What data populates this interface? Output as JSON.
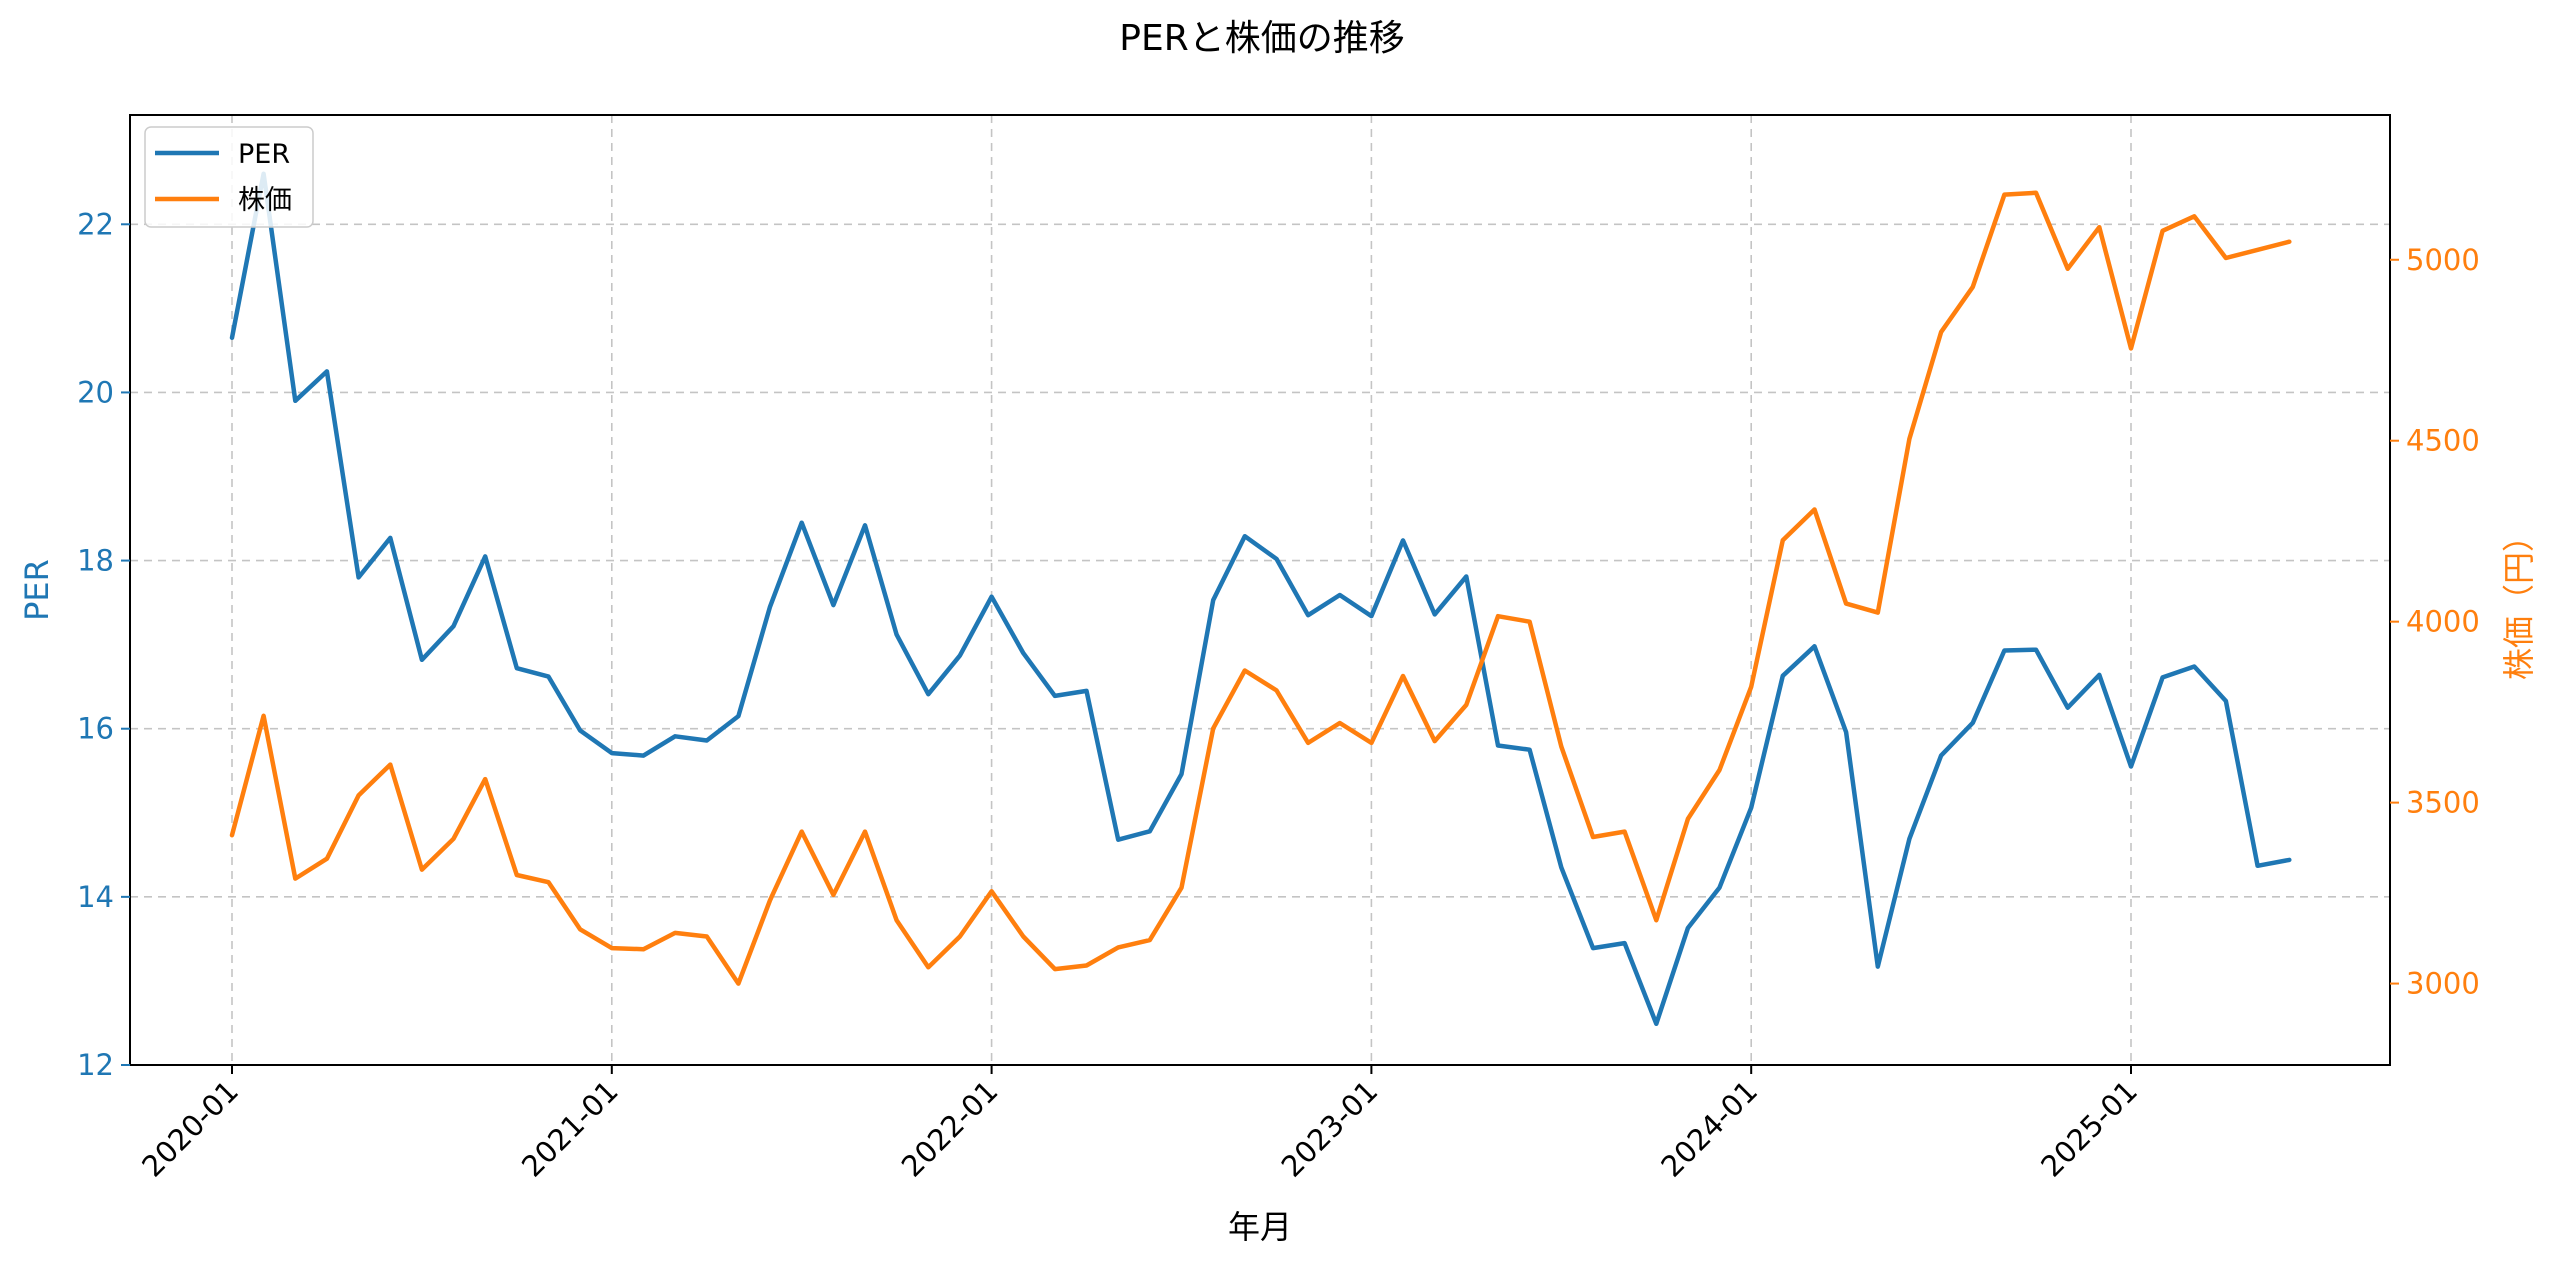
{
  "chart_data": {
    "type": "line",
    "title": "PERと株価の推移",
    "xlabel": "年月",
    "x_tick_labels": [
      "2020-01",
      "2021-01",
      "2022-01",
      "2023-01",
      "2024-01",
      "2025-01"
    ],
    "x": [
      "2020-01",
      "2020-02",
      "2020-03",
      "2020-04",
      "2020-05",
      "2020-06",
      "2020-07",
      "2020-08",
      "2020-09",
      "2020-10",
      "2020-11",
      "2020-12",
      "2021-01",
      "2021-02",
      "2021-03",
      "2021-04",
      "2021-05",
      "2021-06",
      "2021-07",
      "2021-08",
      "2021-09",
      "2021-10",
      "2021-11",
      "2021-12",
      "2022-01",
      "2022-02",
      "2022-03",
      "2022-04",
      "2022-05",
      "2022-06",
      "2022-07",
      "2022-08",
      "2022-09",
      "2022-10",
      "2022-11",
      "2022-12",
      "2023-01",
      "2023-02",
      "2023-03",
      "2023-04",
      "2023-05",
      "2023-06",
      "2023-07",
      "2023-08",
      "2023-09",
      "2023-10",
      "2023-11",
      "2023-12",
      "2024-01",
      "2024-02",
      "2024-03",
      "2024-04",
      "2024-05",
      "2024-06",
      "2024-07",
      "2024-08",
      "2024-09",
      "2024-10",
      "2024-11",
      "2024-12",
      "2025-01",
      "2025-02",
      "2025-03",
      "2025-04",
      "2025-05",
      "2025-06"
    ],
    "series": [
      {
        "name": "PER",
        "axis": "left",
        "color": "#1f77b4",
        "values": [
          20.65,
          22.6,
          19.9,
          20.25,
          17.8,
          18.27,
          16.82,
          17.22,
          18.05,
          16.72,
          16.62,
          15.98,
          15.71,
          15.68,
          15.91,
          15.86,
          16.15,
          17.45,
          18.45,
          17.47,
          18.42,
          17.12,
          16.41,
          16.87,
          17.57,
          16.9,
          16.39,
          16.45,
          14.68,
          14.78,
          15.46,
          17.53,
          18.29,
          18.02,
          17.35,
          17.59,
          17.34,
          18.24,
          17.36,
          17.81,
          15.8,
          15.75,
          14.35,
          13.39,
          13.45,
          12.49,
          13.63,
          14.11,
          15.06,
          16.63,
          16.98,
          15.96,
          13.17,
          14.69,
          15.68,
          16.07,
          16.93,
          16.94,
          16.25,
          16.64,
          15.55,
          16.61,
          16.74,
          16.33,
          14.37,
          14.44
        ]
      },
      {
        "name": "株価",
        "axis": "right",
        "color": "#ff7f0e",
        "values": [
          3410,
          3740,
          3290,
          3345,
          3520,
          3605,
          3315,
          3400,
          3565,
          3300,
          3280,
          3150,
          3098,
          3095,
          3140,
          3130,
          3000,
          3230,
          3420,
          3245,
          3420,
          3175,
          3045,
          3130,
          3255,
          3130,
          3040,
          3050,
          3100,
          3120,
          3265,
          3705,
          3865,
          3810,
          3665,
          3720,
          3665,
          3850,
          3670,
          3770,
          4015,
          4000,
          3655,
          3405,
          3420,
          3175,
          3455,
          3590,
          3820,
          4225,
          4310,
          4050,
          4025,
          4505,
          4800,
          4925,
          5180,
          5185,
          4975,
          5090,
          4755,
          5080,
          5120,
          5005,
          null,
          5050
        ]
      }
    ],
    "y_left": {
      "label": "PER",
      "lim": [
        12,
        23.3
      ],
      "ticks": [
        12,
        14,
        16,
        18,
        20,
        22
      ],
      "tick_labels": [
        "12",
        "14",
        "16",
        "18",
        "20",
        "22"
      ]
    },
    "y_right": {
      "label": "株価（円）",
      "lim": [
        2775,
        5400
      ],
      "ticks": [
        3000,
        3500,
        4000,
        4500,
        5000
      ],
      "tick_labels": [
        "3000",
        "3500",
        "4000",
        "4500",
        "5000"
      ]
    },
    "legend": {
      "position": "top-left",
      "entries": [
        "PER",
        "株価"
      ]
    },
    "grid": true
  }
}
